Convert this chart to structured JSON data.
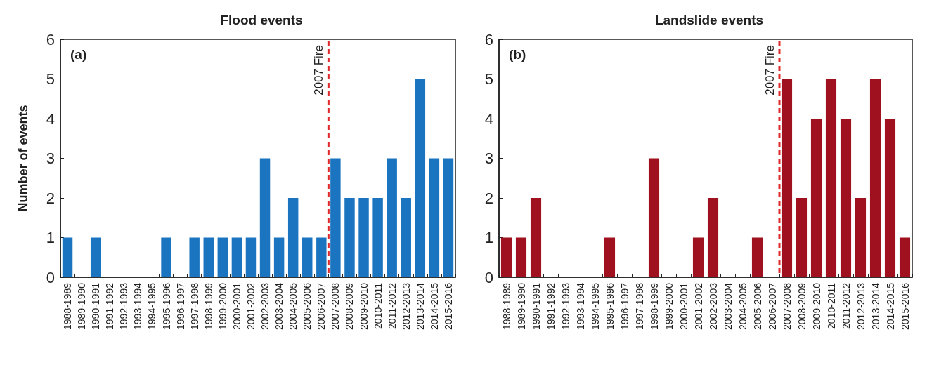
{
  "chart_data": [
    {
      "type": "bar",
      "title": "Flood events",
      "ylabel": "Number of events",
      "annotations": [
        "(a)"
      ],
      "categories": [
        "1988-1989",
        "1989-1990",
        "1990-1991",
        "1991-1992",
        "1992-1993",
        "1993-1994",
        "1994-1995",
        "1995-1996",
        "1996-1997",
        "1997-1998",
        "1998-1999",
        "1999-2000",
        "2000-2001",
        "2001-2002",
        "2002-2003",
        "2003-2004",
        "2004-2005",
        "2005-2006",
        "2006-2007",
        "2007-2008",
        "2008-2009",
        "2009-2010",
        "2010-2011",
        "2011-2012",
        "2012-2013",
        "2013-2014",
        "2014-2015",
        "2015-2016"
      ],
      "values": [
        1,
        0,
        1,
        0,
        0,
        0,
        0,
        1,
        0,
        1,
        1,
        1,
        1,
        1,
        3,
        1,
        2,
        1,
        1,
        3,
        2,
        2,
        2,
        3,
        2,
        5,
        3,
        3
      ],
      "color": "#1b74c0",
      "ylim": [
        0,
        6
      ],
      "yticks": [
        0,
        1,
        2,
        3,
        4,
        5,
        6
      ],
      "grid": false,
      "ref_lines": [
        {
          "axis": "x",
          "value": "2007-2008",
          "label": "2007 Fire",
          "color": "#e02a2a",
          "line_style": "dashed"
        }
      ]
    },
    {
      "type": "bar",
      "title": "Landslide events",
      "annotations": [
        "(b)"
      ],
      "categories": [
        "1988-1989",
        "1989-1990",
        "1990-1991",
        "1991-1992",
        "1992-1993",
        "1993-1994",
        "1994-1995",
        "1995-1996",
        "1996-1997",
        "1997-1998",
        "1998-1999",
        "1999-2000",
        "2000-2001",
        "2001-2002",
        "2002-2003",
        "2003-2004",
        "2004-2005",
        "2005-2006",
        "2006-2007",
        "2007-2008",
        "2008-2009",
        "2009-2010",
        "2010-2011",
        "2011-2012",
        "2012-2013",
        "2013-2014",
        "2014-2015",
        "2015-2016"
      ],
      "values": [
        1,
        1,
        2,
        0,
        0,
        0,
        0,
        1,
        0,
        0,
        3,
        0,
        0,
        1,
        2,
        0,
        0,
        1,
        0,
        5,
        2,
        4,
        5,
        4,
        2,
        5,
        4,
        1
      ],
      "color": "#a0111f",
      "ylim": [
        0,
        6
      ],
      "yticks": [
        0,
        1,
        2,
        3,
        4,
        5,
        6
      ],
      "grid": false,
      "ref_lines": [
        {
          "axis": "x",
          "value": "2007-2008",
          "label": "2007 Fire",
          "color": "#e02a2a",
          "line_style": "dashed"
        }
      ]
    }
  ]
}
